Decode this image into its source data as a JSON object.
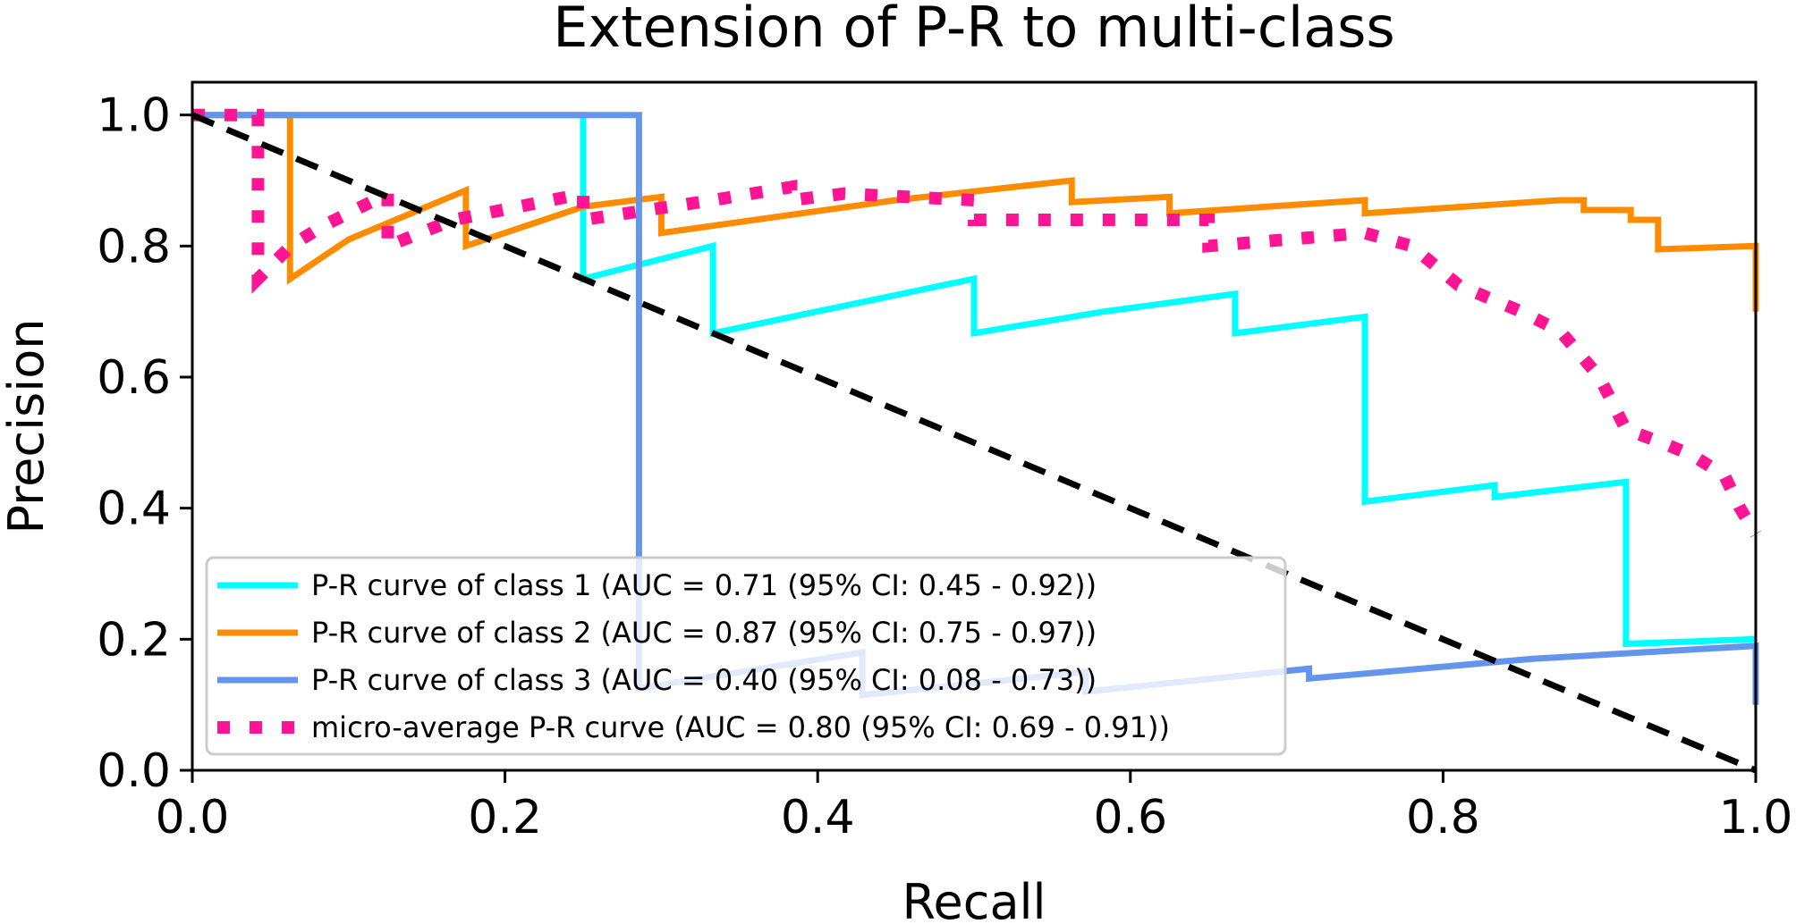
{
  "chart_data": {
    "type": "line",
    "title": "Extension of P-R to multi-class",
    "xlabel": "Recall",
    "ylabel": "Precision",
    "xlim": [
      0.0,
      1.0
    ],
    "ylim": [
      0.0,
      1.05
    ],
    "xticks": [
      0.0,
      0.2,
      0.4,
      0.6,
      0.8,
      1.0
    ],
    "yticks": [
      0.0,
      0.2,
      0.4,
      0.6,
      0.8,
      1.0
    ],
    "xtick_labels": [
      "0.0",
      "0.2",
      "0.4",
      "0.6",
      "0.8",
      "1.0"
    ],
    "ytick_labels": [
      "0.0",
      "0.2",
      "0.4",
      "0.6",
      "0.8",
      "1.0"
    ],
    "grid": false,
    "legend_position": "lower-left",
    "series": [
      {
        "name": "P-R curve of class 1 (AUC = 0.71 (95% CI: 0.45 - 0.92))",
        "color": "#00ffff",
        "style": "solid",
        "points": [
          [
            0.0,
            1.0
          ],
          [
            0.25,
            1.0
          ],
          [
            0.25,
            0.75
          ],
          [
            0.333,
            0.8
          ],
          [
            0.333,
            0.667
          ],
          [
            0.5,
            0.75
          ],
          [
            0.5,
            0.667
          ],
          [
            0.583,
            0.7
          ],
          [
            0.667,
            0.727
          ],
          [
            0.667,
            0.667
          ],
          [
            0.75,
            0.692
          ],
          [
            0.75,
            0.41
          ],
          [
            0.833,
            0.435
          ],
          [
            0.833,
            0.417
          ],
          [
            0.917,
            0.44
          ],
          [
            0.917,
            0.193
          ],
          [
            1.0,
            0.2
          ]
        ]
      },
      {
        "name": "P-R curve of class 2 (AUC = 0.87 (95% CI: 0.75 - 0.97))",
        "color": "#ff8c00",
        "style": "solid",
        "points": [
          [
            0.0,
            1.0
          ],
          [
            0.0625,
            1.0
          ],
          [
            0.0625,
            0.75
          ],
          [
            0.1,
            0.81
          ],
          [
            0.175,
            0.885
          ],
          [
            0.175,
            0.8
          ],
          [
            0.25,
            0.86
          ],
          [
            0.3,
            0.875
          ],
          [
            0.3,
            0.82
          ],
          [
            0.45,
            0.87
          ],
          [
            0.5625,
            0.9
          ],
          [
            0.5625,
            0.867
          ],
          [
            0.625,
            0.875
          ],
          [
            0.625,
            0.85
          ],
          [
            0.75,
            0.87
          ],
          [
            0.75,
            0.85
          ],
          [
            0.875,
            0.87
          ],
          [
            0.89,
            0.87
          ],
          [
            0.89,
            0.855
          ],
          [
            0.92,
            0.855
          ],
          [
            0.92,
            0.84
          ],
          [
            0.9375,
            0.84
          ],
          [
            0.9375,
            0.795
          ],
          [
            1.0,
            0.8
          ],
          [
            1.0,
            0.7
          ]
        ]
      },
      {
        "name": "P-R curve of class 3 (AUC = 0.40 (95% CI: 0.08 - 0.73))",
        "color": "#6495ed",
        "style": "solid",
        "points": [
          [
            0.0,
            1.0
          ],
          [
            0.2857,
            1.0
          ],
          [
            0.2857,
            0.125
          ],
          [
            0.4286,
            0.18
          ],
          [
            0.4286,
            0.115
          ],
          [
            0.5714,
            0.15
          ],
          [
            0.5714,
            0.12
          ],
          [
            0.7143,
            0.155
          ],
          [
            0.7143,
            0.14
          ],
          [
            0.8571,
            0.17
          ],
          [
            1.0,
            0.19
          ],
          [
            1.0,
            0.1
          ]
        ]
      },
      {
        "name": "micro-average P-R curve (AUC = 0.80 (95% CI: 0.69 - 0.91))",
        "color": "#ff1493",
        "style": "dotted",
        "points": [
          [
            0.0,
            1.0
          ],
          [
            0.042,
            1.0
          ],
          [
            0.042,
            0.75
          ],
          [
            0.063,
            0.8
          ],
          [
            0.083,
            0.83
          ],
          [
            0.125,
            0.88
          ],
          [
            0.125,
            0.8
          ],
          [
            0.167,
            0.84
          ],
          [
            0.25,
            0.88
          ],
          [
            0.25,
            0.84
          ],
          [
            0.333,
            0.87
          ],
          [
            0.383,
            0.89
          ],
          [
            0.383,
            0.87
          ],
          [
            0.417,
            0.88
          ],
          [
            0.5,
            0.87
          ],
          [
            0.5,
            0.84
          ],
          [
            0.583,
            0.84
          ],
          [
            0.65,
            0.84
          ],
          [
            0.65,
            0.8
          ],
          [
            0.75,
            0.82
          ],
          [
            0.78,
            0.8
          ],
          [
            0.81,
            0.74
          ],
          [
            0.85,
            0.7
          ],
          [
            0.875,
            0.67
          ],
          [
            0.9,
            0.6
          ],
          [
            0.917,
            0.52
          ],
          [
            0.94,
            0.5
          ],
          [
            0.96,
            0.48
          ],
          [
            0.98,
            0.45
          ],
          [
            0.99,
            0.4
          ],
          [
            1.0,
            0.36
          ]
        ]
      }
    ],
    "reference_line": {
      "color": "#000000",
      "style": "dashed",
      "points": [
        [
          0.0,
          1.0
        ],
        [
          1.0,
          0.0
        ]
      ]
    }
  }
}
